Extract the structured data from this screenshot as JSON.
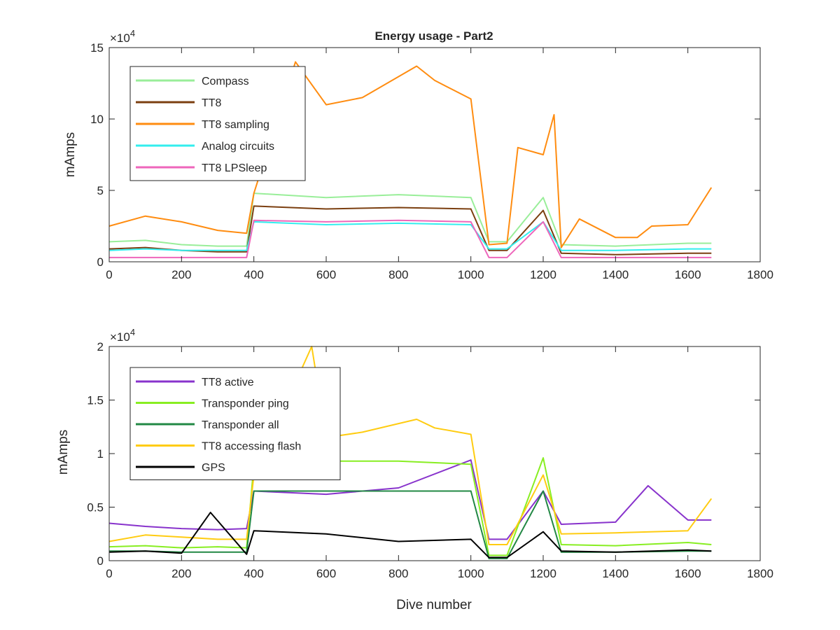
{
  "chart_data": [
    {
      "type": "line",
      "title": "Energy usage - Part2",
      "xlabel": "",
      "ylabel": "mAmps",
      "xlim": [
        0,
        1800
      ],
      "ylim": [
        0,
        150000
      ],
      "x_ticks": [
        0,
        200,
        400,
        600,
        800,
        1000,
        1200,
        1400,
        1600,
        1800
      ],
      "y_ticks": [
        0,
        50000,
        100000,
        150000
      ],
      "y_tick_labels": [
        "0",
        "5",
        "10",
        "15"
      ],
      "exponent_label": "×10",
      "exponent_power": "4",
      "legend_position": "top-left",
      "grid": false,
      "series": [
        {
          "name": "Compass",
          "color": "#99ee99",
          "x": [
            0,
            100,
            200,
            300,
            380,
            400,
            600,
            800,
            1000,
            1050,
            1100,
            1200,
            1250,
            1400,
            1600,
            1665
          ],
          "values": [
            14000,
            15000,
            12000,
            11000,
            11000,
            48000,
            45000,
            47000,
            45000,
            14000,
            14000,
            45000,
            12000,
            11000,
            13000,
            13000
          ]
        },
        {
          "name": "TT8",
          "color": "#7b3f10",
          "x": [
            0,
            100,
            200,
            300,
            380,
            400,
            600,
            800,
            1000,
            1050,
            1100,
            1200,
            1250,
            1400,
            1600,
            1665
          ],
          "values": [
            9000,
            10000,
            8000,
            7000,
            7000,
            39000,
            37000,
            38000,
            37000,
            8000,
            8000,
            36000,
            6000,
            5000,
            6000,
            6000
          ]
        },
        {
          "name": "TT8 sampling",
          "color": "#ff8c10",
          "x": [
            0,
            100,
            200,
            300,
            380,
            400,
            515,
            600,
            700,
            850,
            900,
            1000,
            1050,
            1100,
            1130,
            1200,
            1230,
            1250,
            1300,
            1400,
            1460,
            1500,
            1600,
            1665
          ],
          "values": [
            25000,
            32000,
            28000,
            22000,
            20000,
            48000,
            140000,
            110000,
            115000,
            137000,
            127000,
            114000,
            12000,
            13000,
            80000,
            75000,
            103000,
            10000,
            30000,
            17000,
            17000,
            25000,
            26000,
            52000
          ]
        },
        {
          "name": "Analog circuits",
          "color": "#33eeee",
          "x": [
            0,
            100,
            200,
            300,
            380,
            400,
            600,
            800,
            1000,
            1050,
            1100,
            1200,
            1250,
            1400,
            1600,
            1665
          ],
          "values": [
            8000,
            9000,
            8000,
            8000,
            8000,
            28000,
            26000,
            27000,
            26000,
            9000,
            9000,
            28000,
            8000,
            8000,
            9000,
            9000
          ]
        },
        {
          "name": "TT8 LPSleep",
          "color": "#ee66bb",
          "x": [
            0,
            100,
            200,
            300,
            380,
            400,
            600,
            800,
            1000,
            1050,
            1100,
            1200,
            1250,
            1400,
            1600,
            1665
          ],
          "values": [
            3000,
            3000,
            3000,
            3000,
            3000,
            29000,
            28000,
            29000,
            28000,
            3000,
            3000,
            28000,
            3000,
            3000,
            3000,
            3000
          ]
        }
      ]
    },
    {
      "type": "line",
      "title": "",
      "xlabel": "Dive number",
      "ylabel": "mAmps",
      "xlim": [
        0,
        1800
      ],
      "ylim": [
        0,
        20000
      ],
      "x_ticks": [
        0,
        200,
        400,
        600,
        800,
        1000,
        1200,
        1400,
        1600,
        1800
      ],
      "y_ticks": [
        0,
        5000,
        10000,
        15000,
        20000
      ],
      "y_tick_labels": [
        "0",
        "0.5",
        "1",
        "1.5",
        "2"
      ],
      "exponent_label": "×10",
      "exponent_power": "4",
      "legend_position": "top-left",
      "grid": false,
      "series": [
        {
          "name": "TT8 active",
          "color": "#8833cc",
          "x": [
            0,
            100,
            200,
            300,
            380,
            400,
            600,
            800,
            1000,
            1050,
            1100,
            1200,
            1250,
            1400,
            1490,
            1600,
            1665
          ],
          "values": [
            3500,
            3200,
            3000,
            2900,
            3000,
            6500,
            6200,
            6800,
            9400,
            2000,
            2000,
            6500,
            3400,
            3600,
            7000,
            3800,
            3800
          ]
        },
        {
          "name": "Transponder ping",
          "color": "#88ee22",
          "x": [
            0,
            100,
            200,
            300,
            380,
            400,
            600,
            800,
            1000,
            1050,
            1100,
            1200,
            1250,
            1400,
            1600,
            1665
          ],
          "values": [
            1300,
            1400,
            1200,
            1300,
            1200,
            9000,
            9300,
            9300,
            9000,
            500,
            500,
            9600,
            1500,
            1400,
            1700,
            1500
          ]
        },
        {
          "name": "Transponder all",
          "color": "#228844",
          "x": [
            0,
            100,
            200,
            300,
            380,
            400,
            600,
            800,
            1000,
            1050,
            1100,
            1200,
            1250,
            1400,
            1600,
            1665
          ],
          "values": [
            900,
            900,
            800,
            800,
            800,
            6500,
            6500,
            6500,
            6500,
            200,
            200,
            6500,
            800,
            800,
            900,
            900
          ]
        },
        {
          "name": "TT8 accessing flash",
          "color": "#ffcc11",
          "x": [
            0,
            100,
            200,
            300,
            380,
            400,
            560,
            600,
            700,
            850,
            900,
            1000,
            1050,
            1100,
            1200,
            1250,
            1400,
            1600,
            1665
          ],
          "values": [
            1800,
            2400,
            2200,
            2000,
            2000,
            8000,
            20000,
            11500,
            12000,
            13200,
            12400,
            11800,
            1500,
            1500,
            8000,
            2500,
            2600,
            2800,
            5800
          ]
        },
        {
          "name": "GPS",
          "color": "#000000",
          "x": [
            0,
            100,
            200,
            280,
            380,
            400,
            600,
            800,
            1000,
            1050,
            1100,
            1200,
            1250,
            1400,
            1600,
            1665
          ],
          "values": [
            800,
            900,
            700,
            4500,
            600,
            2800,
            2500,
            1800,
            2000,
            300,
            300,
            2700,
            900,
            800,
            1000,
            900
          ]
        }
      ]
    }
  ]
}
